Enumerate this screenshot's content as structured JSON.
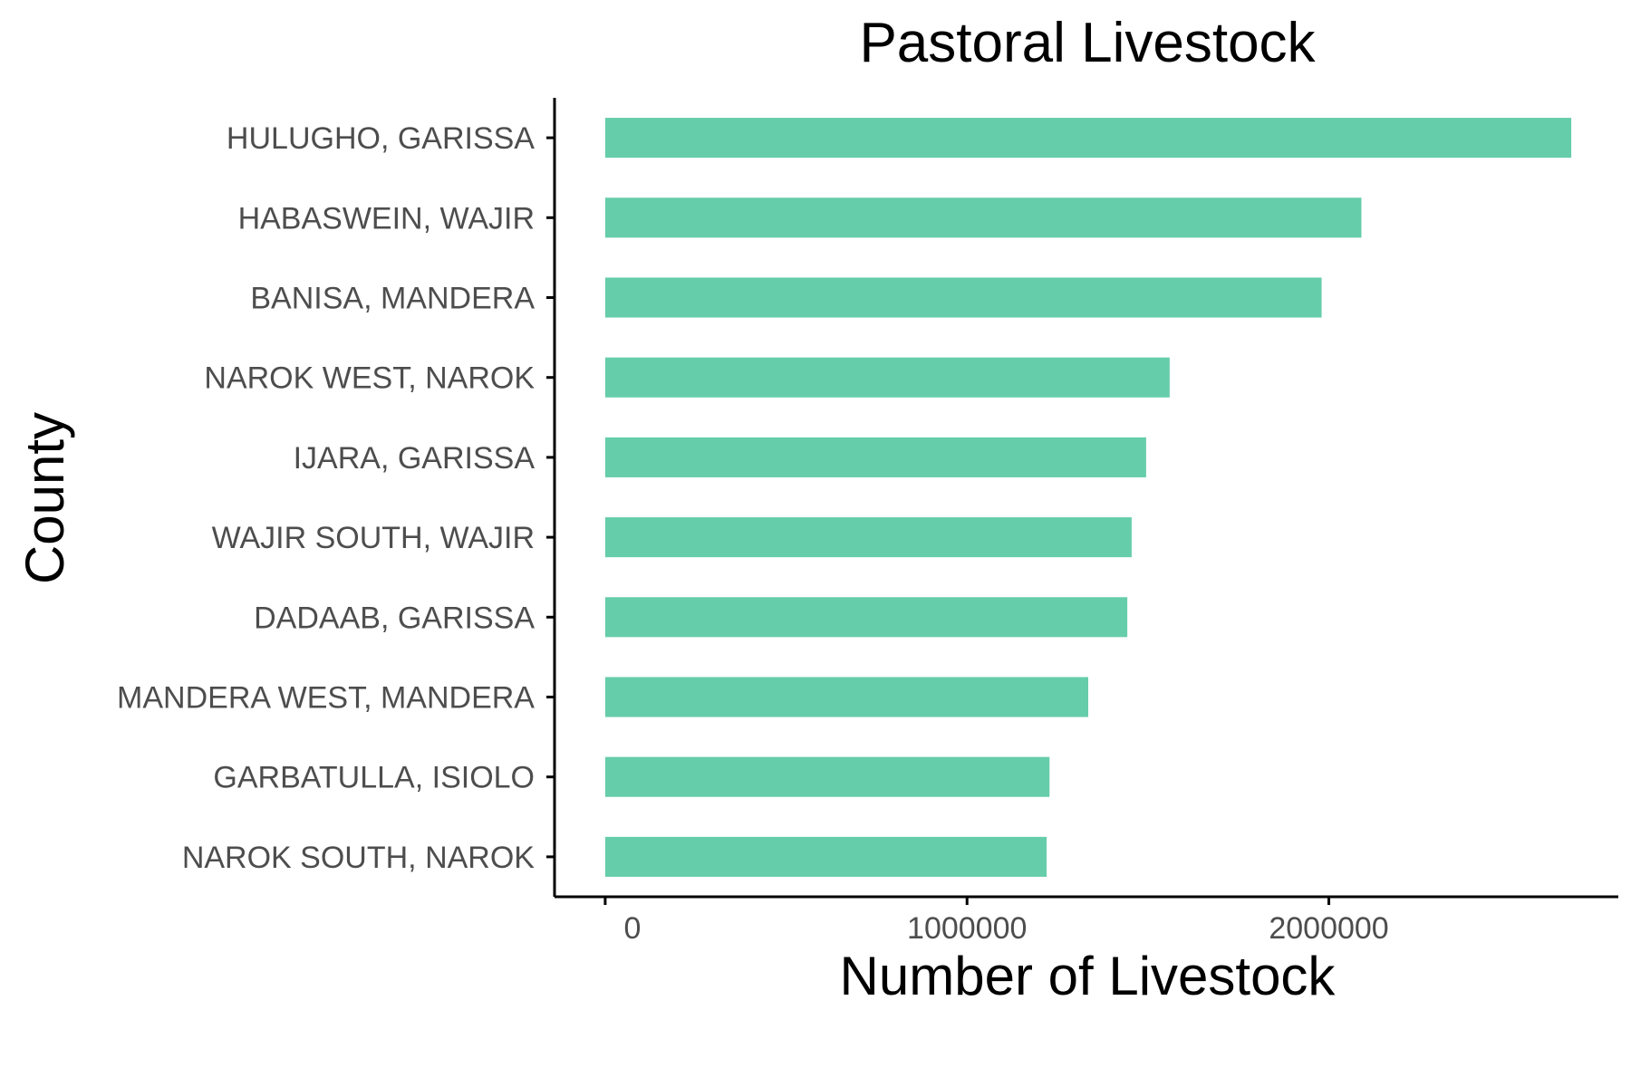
{
  "chart_data": {
    "type": "bar",
    "orientation": "horizontal",
    "title": "Pastoral Livestock",
    "xlabel": "Number of Livestock",
    "ylabel": "County",
    "categories": [
      "HULUGHO, GARISSA",
      "HABASWEIN, WAJIR",
      "BANISA, MANDERA",
      "NAROK WEST, NAROK",
      "IJARA, GARISSA",
      "WAJIR SOUTH, WAJIR",
      "DADAAB, GARISSA",
      "MANDERA WEST, MANDERA",
      "GARBATULLA, ISIOLO",
      "NAROK SOUTH, NAROK"
    ],
    "values": [
      2670000,
      2090000,
      1980000,
      1560000,
      1495000,
      1455000,
      1443000,
      1335000,
      1228000,
      1220000
    ],
    "xlim": [
      -140000,
      2800000
    ],
    "xticks": [
      0,
      1000000,
      2000000
    ],
    "xtick_labels": [
      "0",
      "1000000",
      "2000000"
    ],
    "bar_color": "#66CDAA",
    "grid": false,
    "legend": "none"
  }
}
